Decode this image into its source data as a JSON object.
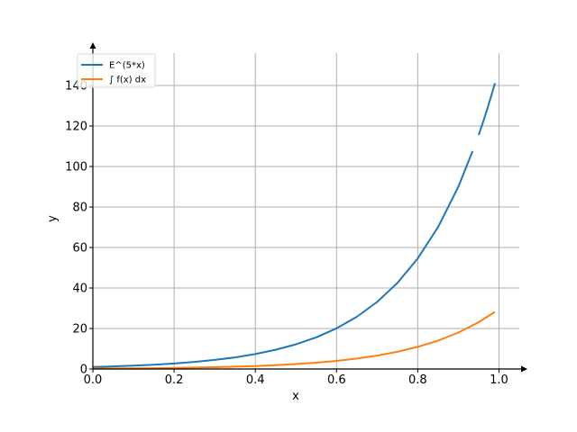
{
  "chart_data": {
    "type": "line",
    "title": "",
    "xlabel": "x",
    "ylabel": "y",
    "xlim": [
      0.0,
      1.05
    ],
    "ylim": [
      0,
      156
    ],
    "xticks": [
      0.0,
      0.2,
      0.4,
      0.6,
      0.8,
      1.0
    ],
    "xtick_labels": [
      "0.0",
      "0.2",
      "0.4",
      "0.6",
      "0.8",
      "1.0"
    ],
    "yticks": [
      0,
      20,
      40,
      60,
      80,
      100,
      120,
      140
    ],
    "ytick_labels": [
      "0",
      "20",
      "40",
      "60",
      "80",
      "100",
      "120",
      "140"
    ],
    "grid": true,
    "legend_position": "top-left",
    "series": [
      {
        "name": "E^(5*x)",
        "color": "#1f77b4",
        "segments": [
          {
            "x": [
              0.0,
              0.05,
              0.1,
              0.15,
              0.2,
              0.25,
              0.3,
              0.35,
              0.4,
              0.45,
              0.5,
              0.55,
              0.6,
              0.65,
              0.7,
              0.75,
              0.8,
              0.85,
              0.9,
              0.935
            ],
            "y": [
              1.0,
              1.28,
              1.65,
              2.12,
              2.72,
              3.49,
              4.48,
              5.75,
              7.39,
              9.49,
              12.18,
              15.64,
              20.09,
              25.79,
              33.12,
              42.52,
              54.6,
              70.11,
              90.02,
              107.6
            ]
          },
          {
            "x": [
              0.95,
              0.96,
              0.97,
              0.98,
              0.99
            ],
            "y": [
              115.58,
              121.5,
              127.74,
              134.29,
              141.17
            ]
          }
        ]
      },
      {
        "name": "∫ f(x) dx",
        "color": "#ff7f0e",
        "segments": [
          {
            "x": [
              0.0,
              0.05,
              0.1,
              0.15,
              0.2,
              0.25,
              0.3,
              0.35,
              0.4,
              0.45,
              0.5,
              0.55,
              0.6,
              0.65,
              0.7,
              0.75,
              0.8,
              0.85,
              0.9,
              0.95,
              0.99
            ],
            "y": [
              0.2,
              0.26,
              0.33,
              0.42,
              0.54,
              0.7,
              0.9,
              1.15,
              1.48,
              1.9,
              2.44,
              3.13,
              4.02,
              5.16,
              6.62,
              8.5,
              10.92,
              14.02,
              18.0,
              23.12,
              28.23
            ]
          }
        ]
      }
    ]
  }
}
